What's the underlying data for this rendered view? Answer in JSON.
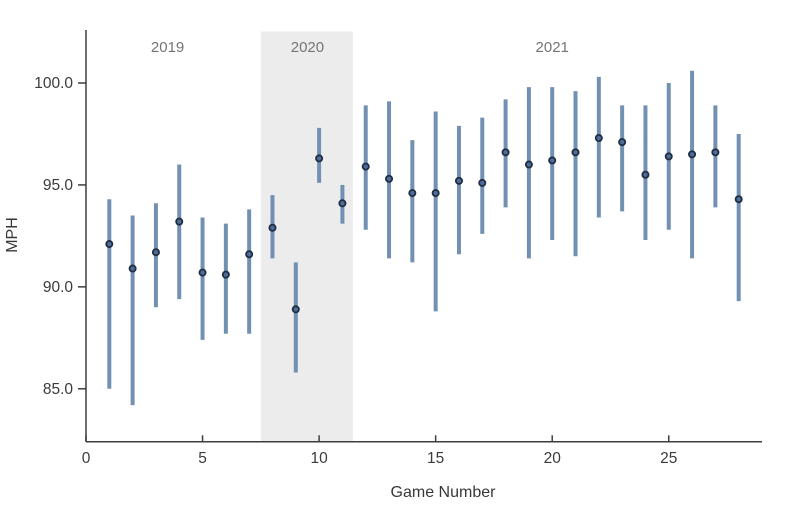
{
  "page": {
    "background_color": "#ffffff",
    "description": "Scatter chart of pitch velocity (MPH) ranges by game number across 2019-2021 seasons"
  },
  "chart_data": {
    "type": "scatter",
    "subtype": "vertical-range-errorbar",
    "title": "",
    "xlabel": "Game Number",
    "ylabel": "MPH",
    "grid": false,
    "legend": "none",
    "xlim": [
      0,
      29
    ],
    "ylim": [
      82.4,
      102.6
    ],
    "x_ticks": [
      {
        "value": 0,
        "label": "0"
      },
      {
        "value": 5,
        "label": "5"
      },
      {
        "value": 10,
        "label": "10"
      },
      {
        "value": 15,
        "label": "15"
      },
      {
        "value": 20,
        "label": "20"
      },
      {
        "value": 25,
        "label": "25"
      }
    ],
    "y_ticks": [
      {
        "value": 85,
        "label": "85.0"
      },
      {
        "value": 90,
        "label": "90.0"
      },
      {
        "value": 95,
        "label": "95.0"
      },
      {
        "value": 100,
        "label": "100.0"
      }
    ],
    "season_bands": [
      {
        "label": "2020",
        "x_start": 7.5,
        "x_end": 11.45,
        "color": "#ececec"
      }
    ],
    "year_labels": [
      {
        "text": "2019",
        "x": 3.5
      },
      {
        "text": "2020",
        "x": 9.5
      },
      {
        "text": "2021",
        "x": 20
      }
    ],
    "points": [
      {
        "game": 1,
        "year": "2019",
        "mean": 92.1,
        "low": 85.0,
        "high": 94.3
      },
      {
        "game": 2,
        "year": "2019",
        "mean": 90.9,
        "low": 84.2,
        "high": 93.5
      },
      {
        "game": 3,
        "year": "2019",
        "mean": 91.7,
        "low": 89.0,
        "high": 94.1
      },
      {
        "game": 4,
        "year": "2019",
        "mean": 93.2,
        "low": 89.4,
        "high": 96.0
      },
      {
        "game": 5,
        "year": "2019",
        "mean": 90.7,
        "low": 87.4,
        "high": 93.4
      },
      {
        "game": 6,
        "year": "2019",
        "mean": 90.6,
        "low": 87.7,
        "high": 93.1
      },
      {
        "game": 7,
        "year": "2019",
        "mean": 91.6,
        "low": 87.7,
        "high": 93.8
      },
      {
        "game": 8,
        "year": "2020",
        "mean": 92.9,
        "low": 91.4,
        "high": 94.5
      },
      {
        "game": 9,
        "year": "2020",
        "mean": 88.9,
        "low": 85.8,
        "high": 91.2
      },
      {
        "game": 10,
        "year": "2020",
        "mean": 96.3,
        "low": 95.1,
        "high": 97.8
      },
      {
        "game": 11,
        "year": "2020",
        "mean": 94.1,
        "low": 93.1,
        "high": 95.0
      },
      {
        "game": 12,
        "year": "2021",
        "mean": 95.9,
        "low": 92.8,
        "high": 98.9
      },
      {
        "game": 13,
        "year": "2021",
        "mean": 95.3,
        "low": 91.4,
        "high": 99.1
      },
      {
        "game": 14,
        "year": "2021",
        "mean": 94.6,
        "low": 91.2,
        "high": 97.2
      },
      {
        "game": 15,
        "year": "2021",
        "mean": 94.6,
        "low": 88.8,
        "high": 98.6
      },
      {
        "game": 16,
        "year": "2021",
        "mean": 95.2,
        "low": 91.6,
        "high": 97.9
      },
      {
        "game": 17,
        "year": "2021",
        "mean": 95.1,
        "low": 92.6,
        "high": 98.3
      },
      {
        "game": 18,
        "year": "2021",
        "mean": 96.6,
        "low": 93.9,
        "high": 99.2
      },
      {
        "game": 19,
        "year": "2021",
        "mean": 96.0,
        "low": 91.4,
        "high": 99.8
      },
      {
        "game": 20,
        "year": "2021",
        "mean": 96.2,
        "low": 92.3,
        "high": 99.8
      },
      {
        "game": 21,
        "year": "2021",
        "mean": 96.6,
        "low": 91.5,
        "high": 99.6
      },
      {
        "game": 22,
        "year": "2021",
        "mean": 97.3,
        "low": 93.4,
        "high": 100.3
      },
      {
        "game": 23,
        "year": "2021",
        "mean": 97.1,
        "low": 93.7,
        "high": 98.9
      },
      {
        "game": 24,
        "year": "2021",
        "mean": 95.5,
        "low": 92.3,
        "high": 98.9
      },
      {
        "game": 25,
        "year": "2021",
        "mean": 96.4,
        "low": 92.8,
        "high": 100.0
      },
      {
        "game": 26,
        "year": "2021",
        "mean": 96.5,
        "low": 91.4,
        "high": 100.6
      },
      {
        "game": 27,
        "year": "2021",
        "mean": 96.6,
        "low": 93.9,
        "high": 98.9
      },
      {
        "game": 28,
        "year": "2021",
        "mean": 94.3,
        "low": 89.3,
        "high": 97.5
      }
    ],
    "colors": {
      "range_bar": "#7291b2",
      "mean_dot_fill": "#4f6d96",
      "mean_dot_stroke": "#1f2e45",
      "band": "#ececec",
      "axis": "#3d3d3d",
      "tick_text": "#3b3b3b",
      "year_text": "#757575"
    }
  }
}
